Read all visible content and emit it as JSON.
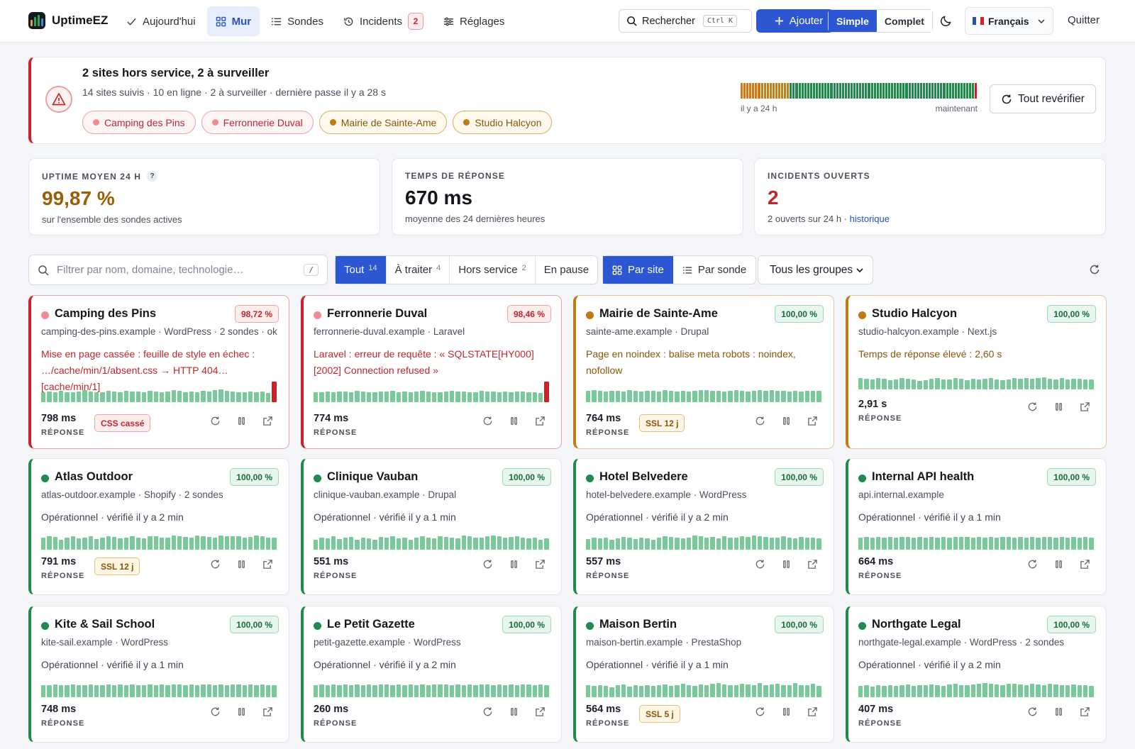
{
  "app": {
    "name": "UptimeEZ"
  },
  "nav": [
    {
      "label": "Aujourd'hui",
      "icon": "check-icon",
      "active": false
    },
    {
      "label": "Mur",
      "icon": "grid-icon",
      "active": true
    },
    {
      "label": "Sondes",
      "icon": "list-icon",
      "active": false
    },
    {
      "label": "Incidents",
      "icon": "history-icon",
      "active": false,
      "badge": "2"
    },
    {
      "label": "Réglages",
      "icon": "sliders-icon",
      "active": false
    }
  ],
  "toolbar": {
    "search_label": "Rechercher",
    "search_kbd": "Ctrl K",
    "add_label": "Ajouter",
    "mode_simple": "Simple",
    "mode_complet": "Complet",
    "language": "Français",
    "quit": "Quitter"
  },
  "alert": {
    "title": "2 sites hors service, 2 à surveiller",
    "subtitle": "14 sites suivis · 10 en ligne · 2 à surveiller · dernière passe il y a 28 s",
    "chips": [
      {
        "label": "Camping des Pins",
        "status": "down"
      },
      {
        "label": "Ferronnerie Duval",
        "status": "down"
      },
      {
        "label": "Mairie de Sainte-Ame",
        "status": "warn"
      },
      {
        "label": "Studio Halcyon",
        "status": "warn"
      }
    ],
    "timeline_left": "il y a 24 h",
    "timeline_right": "maintenant",
    "timeline": [
      "orange",
      "orange",
      "orange",
      "orange",
      "orange",
      "orange",
      "orange",
      "orange",
      "orange",
      "orange",
      "orange",
      "orange",
      "orange",
      "orange",
      "orange",
      "orange",
      "orange",
      "green",
      "green",
      "green",
      "green",
      "green",
      "green",
      "green",
      "green",
      "green",
      "green",
      "green",
      "green",
      "green",
      "green",
      "green",
      "green",
      "green",
      "green",
      "green",
      "green",
      "green",
      "green",
      "green",
      "green",
      "green",
      "green",
      "green",
      "green",
      "green",
      "green",
      "green",
      "green",
      "green",
      "green",
      "green",
      "green",
      "green",
      "green",
      "green",
      "green",
      "green",
      "green",
      "green",
      "green",
      "green",
      "green",
      "green",
      "green",
      "green",
      "green",
      "green",
      "green",
      "green",
      "green",
      "green",
      "green",
      "green",
      "green",
      "green",
      "green",
      "green",
      "green",
      "green",
      "green",
      "red"
    ],
    "recheck_label": "Tout revérifier"
  },
  "colors": {
    "down": "#d11f2a",
    "warn": "#c07a12",
    "ok": "#1f8a4c",
    "accent": "#2d56d3",
    "timeline_orange": "#cf7a14",
    "timeline_green": "#1e8a4c",
    "timeline_red": "#d11f2a"
  },
  "stats": [
    {
      "label": "UPTIME MOYEN 24 H",
      "help": "?",
      "value": "99,87 %",
      "note": "sur l'ensemble des sondes actives",
      "value_color": "#9a5e07"
    },
    {
      "label": "TEMPS DE RÉPONSE",
      "value": "670 ms",
      "note": "moyenne des 24 dernières heures",
      "value_color": "#15171c"
    },
    {
      "label": "INCIDENTS OUVERTS",
      "value": "2",
      "note": "2 ouverts sur 24 h · ",
      "note_link": "historique",
      "value_color": "#c0262c"
    }
  ],
  "filter": {
    "placeholder": "Filtrer par nom, domaine, technologie…",
    "shortcut": "/"
  },
  "tabs": [
    {
      "label": "Tout",
      "count": "14",
      "active": true
    },
    {
      "label": "À traiter",
      "count": "4",
      "active": false
    },
    {
      "label": "Hors service",
      "count": "2",
      "active": false
    },
    {
      "label": "En pause",
      "count": "",
      "active": false
    }
  ],
  "views": [
    {
      "label": "Par site",
      "active": true
    },
    {
      "label": "Par sonde",
      "active": false
    }
  ],
  "groups_select": "Tous les groupes",
  "response_label": "RÉPONSE",
  "sites": [
    {
      "name": "Camping des Pins",
      "status": "down",
      "uptime": "98,72 %",
      "meta": "camping-des-pins.example · WordPress · 2 sondes · ok",
      "message": "Mise en page cassée : feuille de style en échec : …/cache/min/1/absent.css → HTTP 404 [cache/min/1]",
      "response": "798 ms",
      "badge": "CSS cassé",
      "badge_type": "css",
      "bars": [
        0.7,
        0.75,
        0.7,
        0.8,
        0.72,
        0.7,
        0.78,
        0.85,
        0.75,
        0.7,
        0.72,
        0.8,
        0.76,
        0.7,
        0.82,
        0.78,
        0.75,
        0.7,
        0.8,
        0.74,
        0.72,
        0.78,
        0.85,
        0.8,
        0.7,
        0.76,
        0.72,
        0.8,
        0.78,
        0.85,
        0.9,
        0.8,
        0.75,
        0.7,
        0.72,
        0.78,
        0.7,
        0.74,
        0.68,
        1.45
      ]
    },
    {
      "name": "Ferronnerie Duval",
      "status": "down",
      "uptime": "98,46 %",
      "meta": "ferronnerie-duval.example · Laravel",
      "message": "Laravel : erreur de requête : « SQLSTATE[HY000] [2002] Connection refused »",
      "response": "774 ms",
      "badge": "",
      "badge_type": "",
      "bars": [
        0.7,
        0.72,
        0.75,
        0.7,
        0.78,
        0.74,
        0.7,
        0.8,
        0.76,
        0.72,
        0.7,
        0.78,
        0.74,
        0.8,
        0.72,
        0.76,
        0.7,
        0.74,
        0.8,
        0.78,
        0.72,
        0.7,
        0.76,
        0.8,
        0.74,
        0.78,
        0.72,
        0.7,
        0.8,
        0.76,
        0.74,
        0.72,
        0.78,
        0.7,
        0.76,
        0.74,
        0.72,
        0.7,
        0.68,
        1.45
      ]
    },
    {
      "name": "Mairie de Sainte-Ame",
      "status": "warn",
      "uptime": "100,00 %",
      "meta": "sainte-ame.example · Drupal",
      "message": "Page en noindex : balise meta robots : noindex, nofollow",
      "response": "764 ms",
      "badge": "SSL 12 j",
      "badge_type": "ssl",
      "bars": [
        0.8,
        0.85,
        0.8,
        0.75,
        0.82,
        0.8,
        0.78,
        0.85,
        0.8,
        0.76,
        0.82,
        0.8,
        0.78,
        0.84,
        0.8,
        0.76,
        0.82,
        0.78,
        0.8,
        0.85,
        0.88,
        0.8,
        0.82,
        0.78,
        0.8,
        0.84,
        0.8,
        0.78,
        0.82,
        0.86,
        0.8,
        0.84,
        0.8,
        0.82,
        0.78,
        0.8,
        0.76,
        0.8,
        0.82,
        0.8
      ]
    },
    {
      "name": "Studio Halcyon",
      "status": "warn",
      "uptime": "100,00 %",
      "meta": "studio-halcyon.example · Next.js",
      "message": "Temps de réponse élevé : 2,60 s",
      "response": "2,91 s",
      "badge": "",
      "badge_type": "",
      "bars": [
        0.8,
        0.75,
        0.7,
        0.8,
        0.76,
        0.65,
        0.72,
        0.8,
        0.75,
        0.7,
        0.62,
        0.68,
        0.75,
        0.8,
        0.7,
        0.72,
        0.8,
        0.78,
        0.68,
        0.75,
        0.7,
        0.78,
        0.8,
        0.7,
        0.65,
        0.72,
        0.8,
        0.75,
        0.82,
        0.78,
        0.8,
        0.85,
        0.78,
        0.72,
        0.8,
        0.7,
        0.75,
        0.78,
        0.72,
        0.7
      ]
    },
    {
      "name": "Atlas Outdoor",
      "status": "ok",
      "uptime": "100,00 %",
      "meta": "atlas-outdoor.example · Shopify · 2 sondes",
      "message": "Opérationnel · vérifié il y a 2 min",
      "response": "791 ms",
      "badge": "SSL 12 j",
      "badge_type": "ssl",
      "bars": [
        0.7,
        0.8,
        0.75,
        0.6,
        0.72,
        0.8,
        0.65,
        0.7,
        0.78,
        0.62,
        0.7,
        0.8,
        0.75,
        0.68,
        0.72,
        0.8,
        0.7,
        0.65,
        0.78,
        0.8,
        0.72,
        0.7,
        0.85,
        0.8,
        0.75,
        0.7,
        0.82,
        0.8,
        0.75,
        0.7,
        0.85,
        0.8,
        0.78,
        0.8,
        0.7,
        0.75,
        0.82,
        0.8,
        0.7,
        0.72
      ]
    },
    {
      "name": "Clinique Vauban",
      "status": "ok",
      "uptime": "100,00 %",
      "meta": "clinique-vauban.example · Drupal",
      "message": "Opérationnel · vérifié il y a 1 min",
      "response": "551 ms",
      "badge": "",
      "badge_type": "",
      "bars": [
        0.6,
        0.7,
        0.65,
        0.8,
        0.62,
        0.7,
        0.75,
        0.6,
        0.72,
        0.68,
        0.6,
        0.75,
        0.7,
        0.8,
        0.65,
        0.72,
        0.6,
        0.7,
        0.78,
        0.72,
        0.68,
        0.8,
        0.75,
        0.7,
        0.65,
        0.85,
        0.8,
        0.72,
        0.7,
        0.78,
        0.85,
        0.8,
        0.7,
        0.75,
        0.8,
        0.7,
        0.65,
        0.72,
        0.6,
        0.65
      ]
    },
    {
      "name": "Hotel Belvedere",
      "status": "ok",
      "uptime": "100,00 %",
      "meta": "hotel-belvedere.example · WordPress",
      "message": "Opérationnel · vérifié il y a 2 min",
      "response": "557 ms",
      "badge": "",
      "badge_type": "",
      "bars": [
        0.62,
        0.7,
        0.65,
        0.72,
        0.6,
        0.68,
        0.75,
        0.7,
        0.62,
        0.72,
        0.68,
        0.6,
        0.7,
        0.8,
        0.75,
        0.7,
        0.65,
        0.72,
        0.85,
        0.8,
        0.7,
        0.75,
        0.68,
        0.8,
        0.72,
        0.7,
        0.78,
        0.75,
        0.85,
        0.8,
        0.75,
        0.72,
        0.7,
        0.8,
        0.72,
        0.68,
        0.75,
        0.7,
        0.72,
        0.65
      ]
    },
    {
      "name": "Internal API health",
      "status": "ok",
      "uptime": "100,00 %",
      "meta": "api.internal.example",
      "message": "Opérationnel · vérifié il y a 1 min",
      "response": "664 ms",
      "badge": "",
      "badge_type": "",
      "bars": [
        0.72,
        0.74,
        0.72,
        0.75,
        0.72,
        0.74,
        0.72,
        0.75,
        0.73,
        0.72,
        0.74,
        0.72,
        0.75,
        0.72,
        0.74,
        0.72,
        0.75,
        0.73,
        0.74,
        0.72,
        0.75,
        0.72,
        0.74,
        0.72,
        0.73,
        0.75,
        0.72,
        0.74,
        0.72,
        0.75,
        0.72,
        0.74,
        0.73,
        0.72,
        0.75,
        0.72,
        0.74,
        0.72,
        0.75,
        0.72
      ]
    },
    {
      "name": "Kite & Sail School",
      "status": "ok",
      "uptime": "100,00 %",
      "meta": "kite-sail.example · WordPress",
      "message": "Opérationnel · vérifié il y a 1 min",
      "response": "748 ms",
      "badge": "",
      "badge_type": "",
      "bars": [
        0.7,
        0.72,
        0.74,
        0.7,
        0.72,
        0.75,
        0.7,
        0.72,
        0.74,
        0.72,
        0.7,
        0.75,
        0.72,
        0.74,
        0.72,
        0.76,
        0.72,
        0.7,
        0.74,
        0.72,
        0.75,
        0.72,
        0.74,
        0.76,
        0.72,
        0.74,
        0.72,
        0.75,
        0.76,
        0.72,
        0.74,
        0.72,
        0.76,
        0.74,
        0.72,
        0.74,
        0.72,
        0.75,
        0.72,
        0.7
      ]
    },
    {
      "name": "Le Petit Gazette",
      "status": "ok",
      "uptime": "100,00 %",
      "meta": "petit-gazette.example · WordPress",
      "message": "Opérationnel · vérifié il y a 2 min",
      "response": "260 ms",
      "badge": "",
      "badge_type": "",
      "bars": [
        0.72,
        0.74,
        0.72,
        0.75,
        0.72,
        0.74,
        0.7,
        0.75,
        0.72,
        0.74,
        0.72,
        0.75,
        0.73,
        0.72,
        0.74,
        0.72,
        0.75,
        0.72,
        0.74,
        0.72,
        0.75,
        0.73,
        0.74,
        0.72,
        0.75,
        0.72,
        0.74,
        0.72,
        0.73,
        0.75,
        0.72,
        0.74,
        0.72,
        0.75,
        0.72,
        0.74,
        0.73,
        0.72,
        0.74,
        0.72
      ]
    },
    {
      "name": "Maison Bertin",
      "status": "ok",
      "uptime": "100,00 %",
      "meta": "maison-bertin.example · PrestaShop",
      "message": "Opérationnel · vérifié il y a 1 min",
      "response": "564 ms",
      "badge": "SSL 5 j",
      "badge_type": "ssl",
      "bars": [
        0.7,
        0.65,
        0.72,
        0.68,
        0.6,
        0.7,
        0.75,
        0.62,
        0.7,
        0.68,
        0.72,
        0.65,
        0.7,
        0.75,
        0.68,
        0.72,
        0.8,
        0.7,
        0.68,
        0.75,
        0.72,
        0.8,
        0.85,
        0.75,
        0.7,
        0.72,
        0.8,
        0.75,
        0.7,
        0.85,
        0.72,
        0.75,
        0.8,
        0.7,
        0.72,
        0.85,
        0.7,
        0.72,
        0.8,
        0.65
      ]
    },
    {
      "name": "Northgate Legal",
      "status": "ok",
      "uptime": "100,00 %",
      "meta": "northgate-legal.example · WordPress · 2 sondes",
      "message": "Opérationnel · vérifié il y a 2 min",
      "response": "407 ms",
      "badge": "",
      "badge_type": "",
      "bars": [
        0.65,
        0.7,
        0.62,
        0.7,
        0.68,
        0.72,
        0.65,
        0.7,
        0.75,
        0.68,
        0.7,
        0.72,
        0.75,
        0.7,
        0.68,
        0.75,
        0.8,
        0.72,
        0.7,
        0.75,
        0.8,
        0.85,
        0.8,
        0.75,
        0.72,
        0.8,
        0.78,
        0.75,
        0.7,
        0.8,
        0.75,
        0.72,
        0.78,
        0.75,
        0.7,
        0.72,
        0.75,
        0.7,
        0.72,
        0.68
      ]
    }
  ]
}
